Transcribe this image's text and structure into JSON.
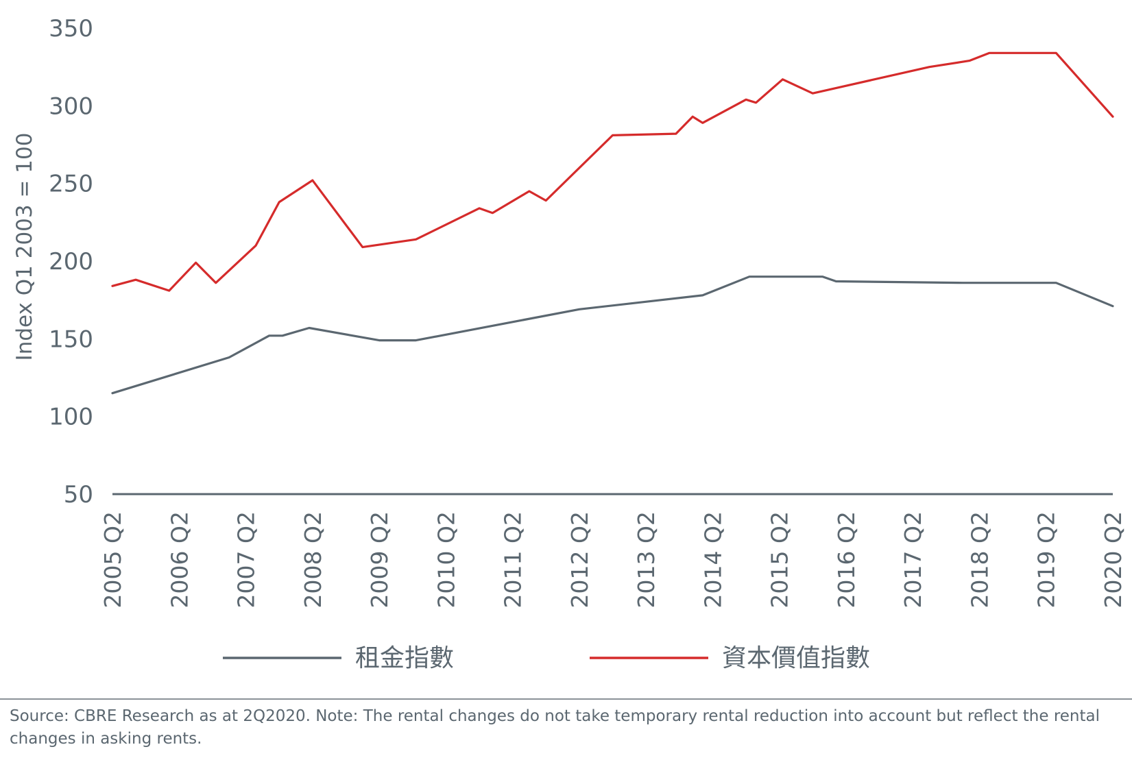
{
  "chart_data": {
    "type": "line",
    "ylabel": "Index Q1 2003 = 100",
    "ylim": [
      50,
      350
    ],
    "yticks": [
      50,
      100,
      150,
      200,
      250,
      300,
      350
    ],
    "xlim": [
      2005.25,
      2020.25
    ],
    "xticks": [
      "2005 Q2",
      "2006 Q2",
      "2007 Q2",
      "2008 Q2",
      "2009 Q2",
      "2010 Q2",
      "2011 Q2",
      "2012 Q2",
      "2013 Q2",
      "2014 Q2",
      "2015 Q2",
      "2016 Q2",
      "2017 Q2",
      "2018 Q2",
      "2019 Q2",
      "2020 Q2"
    ],
    "grid": false,
    "legend": "bottom",
    "series": [
      {
        "name": "租金指數",
        "color": "#5b6770",
        "points": [
          [
            2005.25,
            115
          ],
          [
            2007.0,
            138
          ],
          [
            2007.6,
            152
          ],
          [
            2007.8,
            152
          ],
          [
            2008.2,
            157
          ],
          [
            2009.25,
            149
          ],
          [
            2009.8,
            149
          ],
          [
            2012.25,
            169
          ],
          [
            2014.1,
            178
          ],
          [
            2014.8,
            190
          ],
          [
            2015.9,
            190
          ],
          [
            2016.1,
            187
          ],
          [
            2018.0,
            186
          ],
          [
            2019.4,
            186
          ],
          [
            2020.25,
            171
          ]
        ]
      },
      {
        "name": "資本價值指數",
        "color": "#d52b2b",
        "points": [
          [
            2005.25,
            184
          ],
          [
            2005.6,
            188
          ],
          [
            2006.1,
            181
          ],
          [
            2006.5,
            199
          ],
          [
            2006.8,
            186
          ],
          [
            2007.4,
            210
          ],
          [
            2007.75,
            238
          ],
          [
            2008.25,
            252
          ],
          [
            2009.0,
            209
          ],
          [
            2009.8,
            214
          ],
          [
            2010.75,
            234
          ],
          [
            2010.95,
            231
          ],
          [
            2011.5,
            245
          ],
          [
            2011.75,
            239
          ],
          [
            2012.75,
            281
          ],
          [
            2013.7,
            282
          ],
          [
            2013.95,
            293
          ],
          [
            2014.1,
            289
          ],
          [
            2014.75,
            304
          ],
          [
            2014.9,
            302
          ],
          [
            2015.3,
            317
          ],
          [
            2015.75,
            308
          ],
          [
            2017.5,
            325
          ],
          [
            2018.1,
            329
          ],
          [
            2018.4,
            334
          ],
          [
            2019.4,
            334
          ],
          [
            2020.25,
            293
          ]
        ]
      }
    ],
    "source": "Source: CBRE Research as at 2Q2020. Note: The rental changes do not take temporary rental reduction into account but reflect the rental changes in asking rents."
  }
}
